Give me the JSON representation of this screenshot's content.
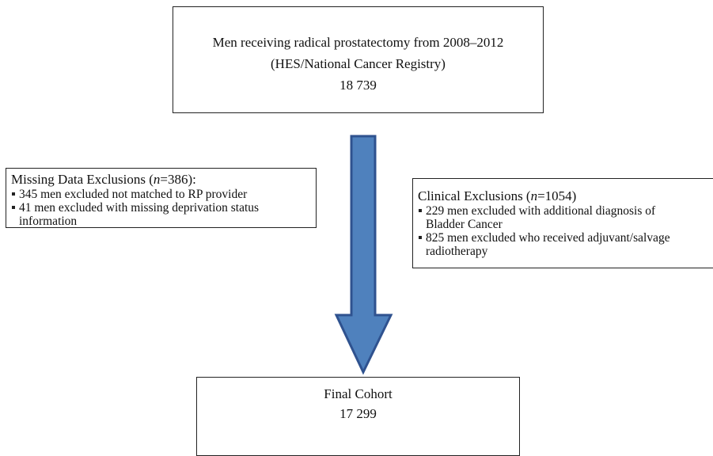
{
  "nodes": [
    {
      "lines": [
        "Men receiving radical prostatectomy from 2008–2012",
        "(HES/National Cancer Registry)",
        "18 739"
      ]
    },
    {
      "title": [
        "Missing Data Exclusions (",
        "n",
        "=386):"
      ],
      "bullets": [
        "345 men excluded not matched to RP provider",
        "41 men excluded with missing deprivation status information"
      ]
    },
    {
      "title": [
        "Clinical Exclusions (",
        "n",
        "=1054)"
      ],
      "bullets": [
        "229 men excluded with additional diagnosis of Bladder Cancer",
        "825 men excluded who received adjuvant/salvage radiotherapy"
      ]
    },
    {
      "lines": [
        "Final Cohort",
        "17 299"
      ]
    }
  ]
}
